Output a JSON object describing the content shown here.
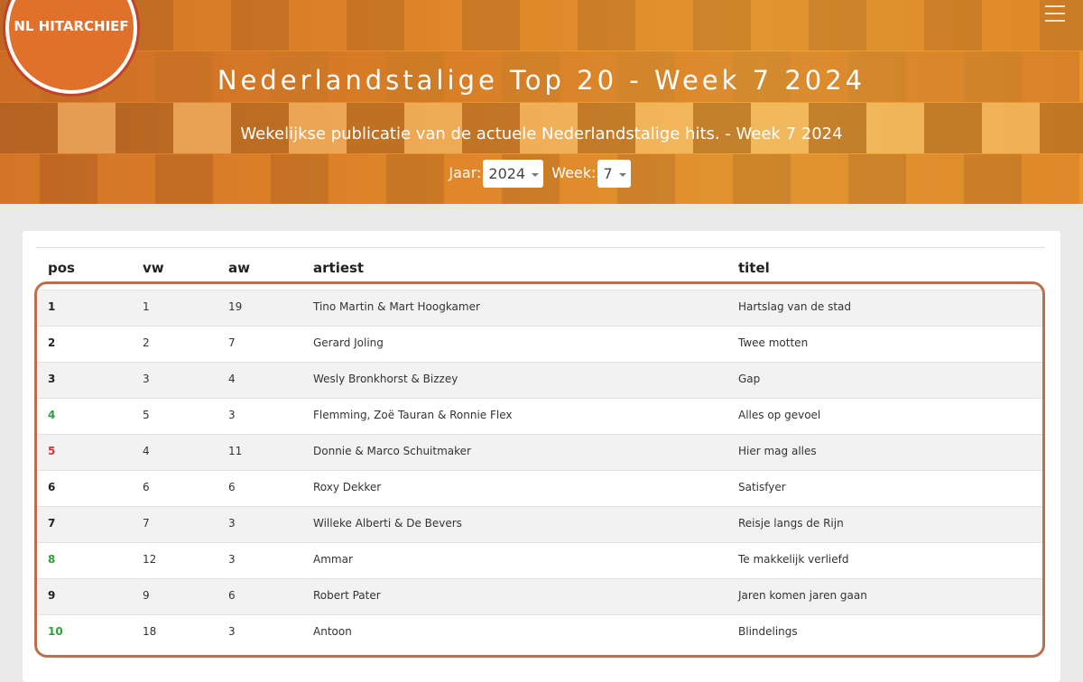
{
  "header": {
    "logo": "NL HITARCHIEF",
    "title": "Nederlandstalige Top 20 - Week 7 2024",
    "subtitle": "Wekelijkse publicatie van de actuele Nederlandstalige hits. - Week 7 2024",
    "year_label": "Jaar:",
    "year": "2024",
    "week_label": "Week:",
    "week": "7"
  },
  "table": {
    "columns": [
      "pos",
      "vw",
      "aw",
      "artiest",
      "titel"
    ],
    "rows": [
      {
        "cells": [
          1,
          1,
          19,
          "Tino Martin & Mart Hoogkamer",
          "Hartslag van de stad"
        ],
        "pos_color": "#222222"
      },
      {
        "cells": [
          2,
          2,
          7,
          "Gerard Joling",
          "Twee motten"
        ],
        "pos_color": "#222222"
      },
      {
        "cells": [
          3,
          3,
          4,
          "Wesly Bronkhorst & Bizzey",
          "Gap"
        ],
        "pos_color": "#222222"
      },
      {
        "cells": [
          4,
          5,
          3,
          "Flemming, Zoë Tauran & Ronnie Flex",
          "Alles op gevoel"
        ],
        "pos_color": "#2e9e3e"
      },
      {
        "cells": [
          5,
          4,
          11,
          "Donnie & Marco Schuitmaker",
          "Hier mag alles"
        ],
        "pos_color": "#d0343c"
      },
      {
        "cells": [
          6,
          6,
          6,
          "Roxy Dekker",
          "Satisfyer"
        ],
        "pos_color": "#222222"
      },
      {
        "cells": [
          7,
          7,
          3,
          "Willeke Alberti & De Bevers",
          "Reisje langs de Rijn"
        ],
        "pos_color": "#222222"
      },
      {
        "cells": [
          8,
          12,
          3,
          "Ammar",
          "Te makkelijk verliefd"
        ],
        "pos_color": "#2e9e3e"
      },
      {
        "cells": [
          9,
          9,
          6,
          "Robert Pater",
          "Jaren komen jaren gaan"
        ],
        "pos_color": "#222222"
      },
      {
        "cells": [
          10,
          18,
          3,
          "Antoon",
          "Blindelings"
        ],
        "pos_color": "#2e9e3e"
      }
    ]
  }
}
